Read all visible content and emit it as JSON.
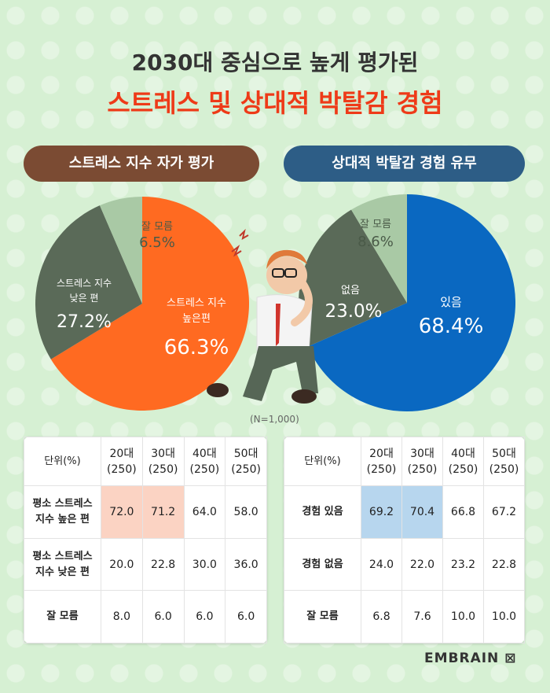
{
  "header": {
    "title_line1": "2030대 중심으로 높게 평가된",
    "title_line2": "스트레스 및 상대적 박탈감 경험"
  },
  "left_pill": "스트레스 지수 자가 평가",
  "right_pill": "상대적 박탈감 경험 유무",
  "sample_note": "(N=1,000)",
  "chart_data": [
    {
      "type": "pie",
      "title": "스트레스 지수 자가 평가",
      "slices": [
        {
          "label": "스트레스 지수 높은편",
          "value": 66.3,
          "color": "#ff6a21"
        },
        {
          "label": "스트레스 지수 낮은 편",
          "value": 27.2,
          "color": "#5a6a58"
        },
        {
          "label": "잘 모름",
          "value": 6.5,
          "color": "#a9c9a5"
        }
      ]
    },
    {
      "type": "pie",
      "title": "상대적 박탈감 경험 유무",
      "slices": [
        {
          "label": "있음",
          "value": 68.4,
          "color": "#0a68c1"
        },
        {
          "label": "없음",
          "value": 23.0,
          "color": "#5a6a58"
        },
        {
          "label": "잘 모름",
          "value": 8.6,
          "color": "#a9c9a5"
        }
      ]
    },
    {
      "type": "table",
      "unit_label": "단위(%)",
      "columns": [
        "20대\n(250)",
        "30대\n(250)",
        "40대\n(250)",
        "50대\n(250)"
      ],
      "rows": [
        {
          "label": "평소 스트레스\n지수 높은 편",
          "values": [
            "72.0",
            "71.2",
            "64.0",
            "58.0"
          ]
        },
        {
          "label": "평소 스트레스\n지수 낮은 편",
          "values": [
            "20.0",
            "22.8",
            "30.0",
            "36.0"
          ]
        },
        {
          "label": "잘 모름",
          "values": [
            "8.0",
            "6.0",
            "6.0",
            "6.0"
          ]
        }
      ]
    },
    {
      "type": "table",
      "unit_label": "단위(%)",
      "columns": [
        "20대\n(250)",
        "30대\n(250)",
        "40대\n(250)",
        "50대\n(250)"
      ],
      "rows": [
        {
          "label": "경험 있음",
          "values": [
            "69.2",
            "70.4",
            "66.8",
            "67.2"
          ]
        },
        {
          "label": "경험 없음",
          "values": [
            "24.0",
            "22.0",
            "23.2",
            "22.8"
          ]
        },
        {
          "label": "잘 모름",
          "values": [
            "6.8",
            "7.6",
            "10.0",
            "10.0"
          ]
        }
      ]
    }
  ],
  "pie_labels": {
    "left": {
      "high_label": "스트레스 지수\n높은편",
      "high_value": "66.3%",
      "low_label": "스트레스 지수\n낮은 편",
      "low_value": "27.2%",
      "unknown_label": "잘 모름",
      "unknown_value": "6.5%"
    },
    "right": {
      "yes_label": "있음",
      "yes_value": "68.4%",
      "no_label": "없음",
      "no_value": "23.0%",
      "unknown_label": "잘 모름",
      "unknown_value": "8.6%"
    }
  },
  "brand": "EMBRAIN"
}
